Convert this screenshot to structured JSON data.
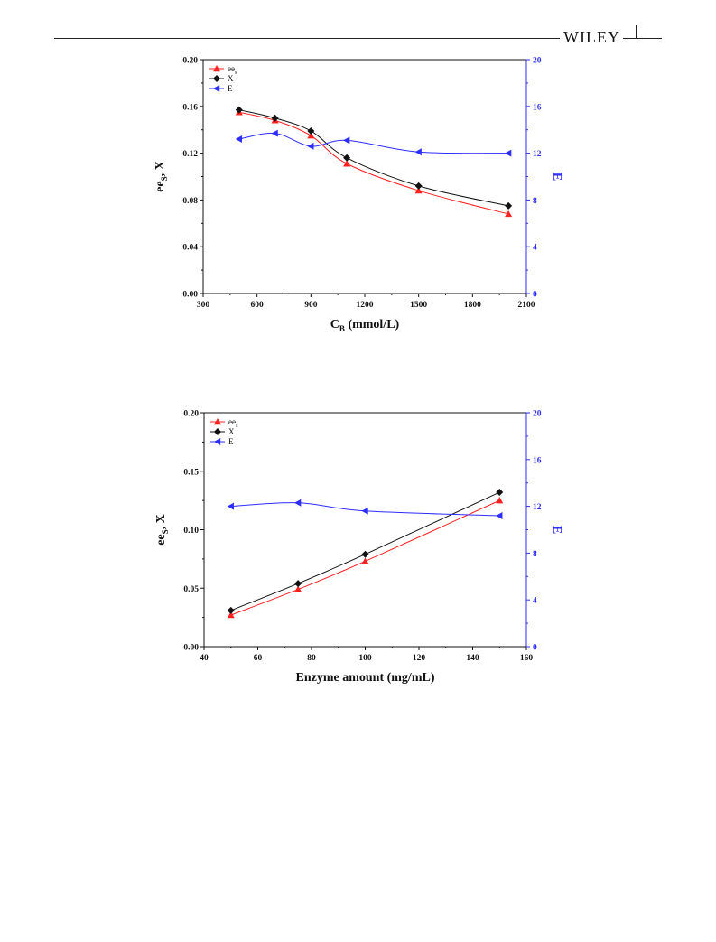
{
  "header": {
    "publisher_logo": "WILEY"
  },
  "chart_data": [
    {
      "type": "line",
      "xlabel": "C",
      "xlabel_sub": "B",
      "xlabel_suffix": " (mmol/L)",
      "ylabel": "ee",
      "ylabel_sub": "S",
      "ylabel_suffix": ", X",
      "y2label": "E",
      "xlim": [
        300,
        2100
      ],
      "xticks": [
        "300",
        "600",
        "900",
        "1200",
        "1500",
        "1800",
        "2100"
      ],
      "ylim": [
        0,
        0.2
      ],
      "yticks": [
        "0.00",
        "0.04",
        "0.08",
        "0.12",
        "0.16",
        "0.20"
      ],
      "y2lim": [
        0,
        20
      ],
      "y2ticks": [
        "0",
        "4",
        "8",
        "12",
        "16",
        "20"
      ],
      "legend_position": "top-left",
      "series": [
        {
          "name": "ee",
          "name_sub": "s",
          "axis": "left",
          "marker": "triangle-up",
          "color": "#ff2020",
          "x": [
            500,
            700,
            900,
            1100,
            1500,
            2000
          ],
          "y": [
            0.155,
            0.148,
            0.135,
            0.111,
            0.088,
            0.068
          ]
        },
        {
          "name": "X",
          "axis": "left",
          "marker": "diamond",
          "color": "#111111",
          "x": [
            500,
            700,
            900,
            1100,
            1500,
            2000
          ],
          "y": [
            0.157,
            0.15,
            0.139,
            0.116,
            0.092,
            0.075
          ]
        },
        {
          "name": "E",
          "axis": "right",
          "marker": "triangle-left",
          "color": "#2d2dff",
          "x": [
            500,
            700,
            900,
            1100,
            1500,
            2000
          ],
          "y": [
            13.2,
            13.7,
            12.6,
            13.1,
            12.1,
            12.0
          ]
        }
      ]
    },
    {
      "type": "line",
      "xlabel": "Enzyme amount (mg/mL)",
      "ylabel": "ee",
      "ylabel_sub": "S",
      "ylabel_suffix": ", X",
      "y2label": "E",
      "xlim": [
        40,
        160
      ],
      "xticks": [
        "40",
        "60",
        "80",
        "100",
        "120",
        "140",
        "160"
      ],
      "ylim": [
        0,
        0.2
      ],
      "yticks": [
        "0.00",
        "0.05",
        "0.10",
        "0.15",
        "0.20"
      ],
      "y2lim": [
        0,
        20
      ],
      "y2ticks": [
        "0",
        "4",
        "8",
        "12",
        "16",
        "20"
      ],
      "legend_position": "top-left",
      "series": [
        {
          "name": "ee",
          "name_sub": "s",
          "axis": "left",
          "marker": "triangle-up",
          "color": "#ff2020",
          "x": [
            50,
            75,
            100,
            150
          ],
          "y": [
            0.027,
            0.049,
            0.073,
            0.125
          ]
        },
        {
          "name": "X",
          "axis": "left",
          "marker": "diamond",
          "color": "#111111",
          "x": [
            50,
            75,
            100,
            150
          ],
          "y": [
            0.031,
            0.054,
            0.079,
            0.132
          ]
        },
        {
          "name": "E",
          "axis": "right",
          "marker": "triangle-left",
          "color": "#2d2dff",
          "x": [
            50,
            75,
            100,
            150
          ],
          "y": [
            12.0,
            12.3,
            11.6,
            11.2
          ]
        }
      ]
    }
  ]
}
